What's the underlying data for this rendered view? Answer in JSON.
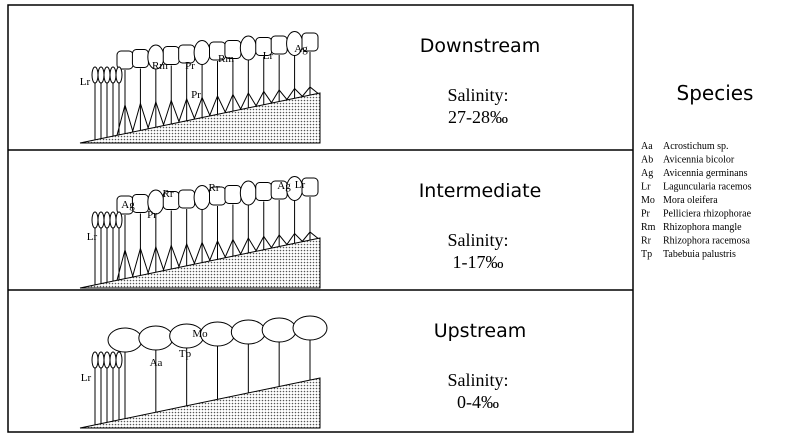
{
  "rows": [
    {
      "zone": "Downstream",
      "salinity_label": "Salinity:",
      "salinity": "27-28‰",
      "tree_labels": [
        "Lr",
        "Rm",
        "Pr",
        "Rm",
        "Pr",
        "Lr",
        "Ag"
      ]
    },
    {
      "zone": "Intermediate",
      "salinity_label": "Salinity:",
      "salinity": "1-17‰",
      "tree_labels": [
        "Lr",
        "Ag",
        "Rr",
        "Pr",
        "Rr",
        "Ag",
        "Lr"
      ]
    },
    {
      "zone": "Upstream",
      "salinity_label": "Salinity:",
      "salinity": "0-4‰",
      "tree_labels": [
        "Lr",
        "Mo",
        "Aa",
        "Tp"
      ]
    }
  ],
  "species": {
    "title": "Species",
    "items": [
      {
        "code": "Aa",
        "name": "Acrostichum sp."
      },
      {
        "code": "Ab",
        "name": "Avicennia bicolor"
      },
      {
        "code": "Ag",
        "name": "Avicennia germinans"
      },
      {
        "code": "Lr",
        "name": "Laguncularia racemos"
      },
      {
        "code": "Mo",
        "name": "Mora oleifera"
      },
      {
        "code": "Pr",
        "name": "Pelliciera rhizophorae"
      },
      {
        "code": "Rm",
        "name": "Rhizophora mangle"
      },
      {
        "code": "Rr",
        "name": "Rhizophora racemosa"
      },
      {
        "code": "Tp",
        "name": "Tabebuia palustris"
      }
    ]
  }
}
